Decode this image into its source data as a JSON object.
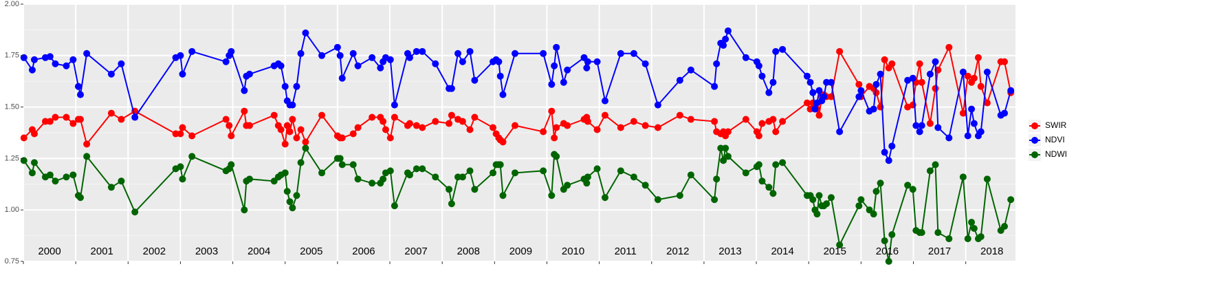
{
  "chart_data": {
    "type": "line",
    "x": [
      2000.01,
      2000.17,
      2000.21,
      2000.42,
      2000.51,
      2000.61,
      2000.82,
      2000.95,
      2001.05,
      2001.09,
      2001.21,
      2001.68,
      2001.87,
      2002.13,
      2002.91,
      2003.0,
      2003.04,
      2003.22,
      2003.87,
      2003.93,
      2003.97,
      2004.22,
      2004.26,
      2004.32,
      2004.79,
      2004.87,
      2004.92,
      2005.0,
      2005.04,
      2005.09,
      2005.14,
      2005.22,
      2005.3,
      2005.39,
      2005.7,
      2006.0,
      2006.05,
      2006.09,
      2006.3,
      2006.39,
      2006.66,
      2006.82,
      2006.87,
      2006.92,
      2007.01,
      2007.09,
      2007.34,
      2007.38,
      2007.51,
      2007.62,
      2007.87,
      2008.13,
      2008.18,
      2008.3,
      2008.39,
      2008.53,
      2008.62,
      2008.97,
      2009.03,
      2009.08,
      2009.11,
      2009.16,
      2009.39,
      2009.93,
      2010.09,
      2010.14,
      2010.18,
      2010.32,
      2010.39,
      2010.71,
      2010.76,
      2010.78,
      2010.96,
      2011.11,
      2011.41,
      2011.66,
      2011.88,
      2012.12,
      2012.54,
      2012.75,
      2013.2,
      2013.24,
      2013.32,
      2013.37,
      2013.41,
      2013.46,
      2013.8,
      2014.01,
      2014.05,
      2014.11,
      2014.24,
      2014.32,
      2014.37,
      2014.5,
      2014.97,
      2015.03,
      2015.08,
      2015.12,
      2015.16,
      2015.2,
      2015.25,
      2015.29,
      2015.34,
      2015.43,
      2015.59,
      2015.96,
      2016.0,
      2016.16,
      2016.24,
      2016.29,
      2016.37,
      2016.45,
      2016.53,
      2016.59,
      2016.89,
      2016.99,
      2017.05,
      2017.12,
      2017.16,
      2017.32,
      2017.42,
      2017.47,
      2017.68,
      2017.95,
      2018.04,
      2018.11,
      2018.16,
      2018.24,
      2018.29,
      2018.41,
      2018.67,
      2018.74,
      2018.86
    ],
    "series": [
      {
        "name": "SWIR",
        "color": "#ff0000",
        "values": [
          1.35,
          1.39,
          1.37,
          1.43,
          1.43,
          1.45,
          1.45,
          1.42,
          1.44,
          1.44,
          1.32,
          1.47,
          1.44,
          1.48,
          1.37,
          1.37,
          1.4,
          1.36,
          1.44,
          1.41,
          1.36,
          1.48,
          1.41,
          1.41,
          1.46,
          1.41,
          1.39,
          1.32,
          1.41,
          1.38,
          1.44,
          1.35,
          1.39,
          1.33,
          1.46,
          1.36,
          1.35,
          1.35,
          1.37,
          1.4,
          1.45,
          1.45,
          1.43,
          1.39,
          1.35,
          1.45,
          1.41,
          1.42,
          1.41,
          1.4,
          1.43,
          1.42,
          1.46,
          1.44,
          1.43,
          1.39,
          1.45,
          1.4,
          1.37,
          1.35,
          1.34,
          1.33,
          1.41,
          1.38,
          1.48,
          1.35,
          1.4,
          1.42,
          1.41,
          1.44,
          1.45,
          1.43,
          1.39,
          1.46,
          1.4,
          1.43,
          1.41,
          1.4,
          1.46,
          1.44,
          1.43,
          1.38,
          1.37,
          1.38,
          1.36,
          1.38,
          1.44,
          1.38,
          1.36,
          1.42,
          1.43,
          1.44,
          1.38,
          1.43,
          1.52,
          1.49,
          1.52,
          1.5,
          1.49,
          1.46,
          1.55,
          1.56,
          1.55,
          1.55,
          1.77,
          1.61,
          1.55,
          1.6,
          1.59,
          1.57,
          1.5,
          1.73,
          1.69,
          1.71,
          1.5,
          1.51,
          1.62,
          1.71,
          1.62,
          1.42,
          1.59,
          1.68,
          1.79,
          1.47,
          1.65,
          1.62,
          1.64,
          1.74,
          1.6,
          1.52,
          1.72,
          1.72,
          1.57
        ]
      },
      {
        "name": "NDVI",
        "color": "#0000ff",
        "values": [
          1.74,
          1.68,
          1.73,
          1.74,
          1.745,
          1.71,
          1.7,
          1.73,
          1.6,
          1.56,
          1.76,
          1.66,
          1.71,
          1.45,
          1.74,
          1.75,
          1.66,
          1.77,
          1.72,
          1.75,
          1.77,
          1.58,
          1.65,
          1.66,
          1.7,
          1.71,
          1.7,
          1.6,
          1.53,
          1.51,
          1.51,
          1.6,
          1.76,
          1.86,
          1.75,
          1.79,
          1.75,
          1.64,
          1.76,
          1.7,
          1.74,
          1.69,
          1.72,
          1.74,
          1.73,
          1.51,
          1.76,
          1.74,
          1.77,
          1.77,
          1.71,
          1.59,
          1.59,
          1.76,
          1.72,
          1.77,
          1.63,
          1.72,
          1.73,
          1.72,
          1.65,
          1.56,
          1.76,
          1.76,
          1.61,
          1.7,
          1.79,
          1.62,
          1.68,
          1.74,
          1.69,
          1.72,
          1.72,
          1.53,
          1.76,
          1.76,
          1.71,
          1.51,
          1.63,
          1.68,
          1.6,
          1.71,
          1.81,
          1.8,
          1.83,
          1.87,
          1.74,
          1.72,
          1.7,
          1.65,
          1.57,
          1.62,
          1.77,
          1.78,
          1.65,
          1.62,
          1.57,
          1.49,
          1.52,
          1.58,
          1.53,
          1.55,
          1.62,
          1.62,
          1.38,
          1.55,
          1.58,
          1.48,
          1.49,
          1.61,
          1.66,
          1.28,
          1.24,
          1.31,
          1.63,
          1.64,
          1.41,
          1.38,
          1.41,
          1.66,
          1.72,
          1.4,
          1.35,
          1.67,
          1.36,
          1.49,
          1.42,
          1.36,
          1.38,
          1.67,
          1.46,
          1.47,
          1.58
        ]
      },
      {
        "name": "NDWI",
        "color": "#006400",
        "values": [
          1.24,
          1.18,
          1.23,
          1.16,
          1.17,
          1.14,
          1.16,
          1.17,
          1.07,
          1.06,
          1.26,
          1.11,
          1.14,
          0.99,
          1.2,
          1.21,
          1.15,
          1.26,
          1.19,
          1.2,
          1.22,
          1.0,
          1.14,
          1.15,
          1.14,
          1.16,
          1.17,
          1.18,
          1.09,
          1.04,
          1.01,
          1.07,
          1.23,
          1.3,
          1.18,
          1.25,
          1.25,
          1.22,
          1.22,
          1.15,
          1.13,
          1.13,
          1.15,
          1.18,
          1.19,
          1.02,
          1.18,
          1.17,
          1.2,
          1.2,
          1.16,
          1.1,
          1.03,
          1.16,
          1.16,
          1.19,
          1.1,
          1.18,
          1.22,
          1.22,
          1.22,
          1.07,
          1.18,
          1.19,
          1.07,
          1.27,
          1.26,
          1.1,
          1.12,
          1.15,
          1.13,
          1.16,
          1.2,
          1.06,
          1.19,
          1.16,
          1.12,
          1.05,
          1.07,
          1.17,
          1.05,
          1.15,
          1.3,
          1.24,
          1.3,
          1.26,
          1.18,
          1.21,
          1.22,
          1.14,
          1.11,
          1.08,
          1.22,
          1.23,
          1.07,
          1.07,
          1.05,
          1.0,
          0.98,
          1.07,
          1.02,
          1.02,
          1.03,
          1.06,
          0.83,
          1.02,
          1.05,
          1.0,
          0.98,
          1.09,
          1.13,
          0.85,
          0.75,
          0.88,
          1.12,
          1.1,
          0.9,
          0.89,
          0.89,
          1.19,
          1.22,
          0.89,
          0.86,
          1.16,
          0.86,
          0.94,
          0.91,
          0.86,
          0.87,
          1.15,
          0.9,
          0.92,
          1.05
        ]
      }
    ],
    "xlim": [
      2000,
      2018.95
    ],
    "xticks": [
      2000,
      2001,
      2002,
      2003,
      2004,
      2005,
      2006,
      2007,
      2008,
      2009,
      2010,
      2011,
      2012,
      2013,
      2014,
      2015,
      2016,
      2017,
      2018
    ],
    "year_labels": [
      "2000",
      "2001",
      "2002",
      "2003",
      "2004",
      "2005",
      "2006",
      "2007",
      "2008",
      "2009",
      "2010",
      "2011",
      "2012",
      "2013",
      "2014",
      "2015",
      "2016",
      "2017",
      "2018"
    ],
    "ylim": [
      0.75,
      2.0
    ],
    "yticks": [
      0.75,
      {
        "value": 1,
        "label": "1.00"
      },
      1.25,
      {
        "value": 1.5,
        "label": "1.50"
      },
      1.75,
      {
        "value": 2,
        "label": "2.00"
      }
    ],
    "grid": true,
    "minor_grid": true,
    "legend": "right"
  }
}
